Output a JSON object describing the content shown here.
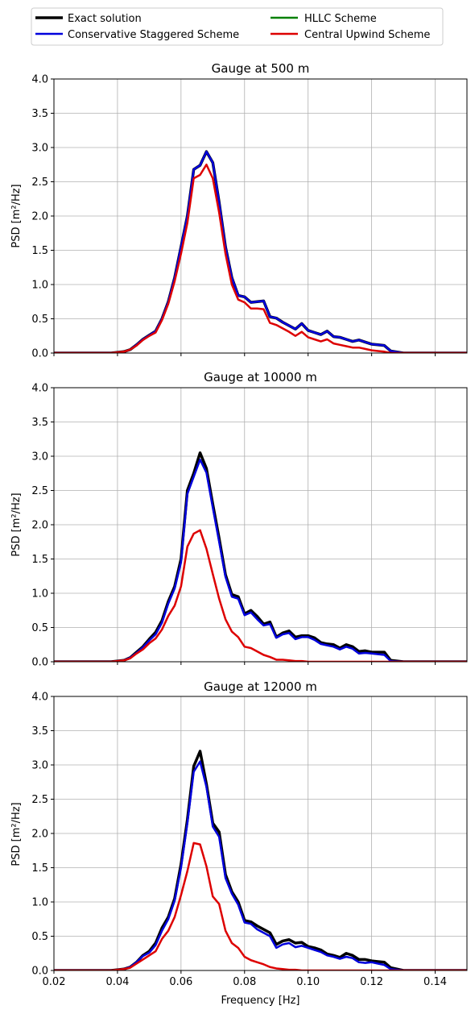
{
  "legend": {
    "placement": "top, two columns",
    "entries": [
      {
        "label": "Exact solution",
        "color": "#000000"
      },
      {
        "label": "HLLC Scheme",
        "color": "#008000"
      },
      {
        "label": "Conservative Staggered Scheme",
        "color": "#0000dd"
      },
      {
        "label": "Central Upwind Scheme",
        "color": "#dd0000"
      }
    ]
  },
  "xlabel": "Frequency [Hz]",
  "ylabel": "PSD [m²/Hz]",
  "chart_data": [
    {
      "type": "line",
      "title": "Gauge at 500 m",
      "ylabel": "PSD [m²/Hz]",
      "xlim": [
        0.02,
        0.15
      ],
      "ylim": [
        0,
        4.0
      ],
      "xticks": [
        0.02,
        0.04,
        0.06,
        0.08,
        0.1,
        0.12,
        0.14
      ],
      "yticks": [
        0.0,
        0.5,
        1.0,
        1.5,
        2.0,
        2.5,
        3.0,
        3.5,
        4.0
      ],
      "grid": true,
      "x": [
        0.02,
        0.03,
        0.038,
        0.04,
        0.042,
        0.044,
        0.046,
        0.048,
        0.05,
        0.052,
        0.054,
        0.056,
        0.058,
        0.06,
        0.062,
        0.064,
        0.066,
        0.068,
        0.07,
        0.072,
        0.074,
        0.076,
        0.078,
        0.08,
        0.082,
        0.084,
        0.086,
        0.088,
        0.09,
        0.092,
        0.094,
        0.096,
        0.098,
        0.1,
        0.102,
        0.104,
        0.106,
        0.108,
        0.11,
        0.112,
        0.114,
        0.116,
        0.118,
        0.12,
        0.122,
        0.124,
        0.126,
        0.13,
        0.15
      ],
      "series": [
        {
          "name": "Exact solution",
          "color": "#000000",
          "values": [
            0,
            0,
            0,
            0.01,
            0.02,
            0.05,
            0.12,
            0.2,
            0.26,
            0.32,
            0.5,
            0.75,
            1.1,
            1.55,
            2.0,
            2.68,
            2.74,
            2.94,
            2.78,
            2.2,
            1.55,
            1.1,
            0.84,
            0.82,
            0.74,
            0.75,
            0.76,
            0.53,
            0.51,
            0.45,
            0.4,
            0.35,
            0.43,
            0.33,
            0.3,
            0.27,
            0.32,
            0.24,
            0.23,
            0.2,
            0.17,
            0.19,
            0.16,
            0.13,
            0.12,
            0.11,
            0.03,
            0,
            0
          ]
        },
        {
          "name": "HLLC Scheme",
          "color": "#008000",
          "values": [
            0,
            0,
            0,
            0.01,
            0.02,
            0.05,
            0.12,
            0.2,
            0.26,
            0.32,
            0.5,
            0.75,
            1.1,
            1.55,
            2.0,
            2.68,
            2.74,
            2.94,
            2.78,
            2.2,
            1.55,
            1.1,
            0.84,
            0.82,
            0.74,
            0.75,
            0.76,
            0.53,
            0.51,
            0.45,
            0.4,
            0.35,
            0.43,
            0.33,
            0.3,
            0.27,
            0.32,
            0.24,
            0.23,
            0.2,
            0.17,
            0.19,
            0.16,
            0.13,
            0.12,
            0.11,
            0.03,
            0,
            0
          ]
        },
        {
          "name": "Conservative Staggered Scheme",
          "color": "#0000dd",
          "values": [
            0,
            0,
            0,
            0.01,
            0.02,
            0.05,
            0.12,
            0.2,
            0.26,
            0.32,
            0.5,
            0.75,
            1.1,
            1.55,
            2.0,
            2.68,
            2.74,
            2.94,
            2.78,
            2.2,
            1.55,
            1.1,
            0.84,
            0.82,
            0.74,
            0.75,
            0.76,
            0.53,
            0.51,
            0.45,
            0.4,
            0.35,
            0.43,
            0.33,
            0.3,
            0.27,
            0.32,
            0.24,
            0.23,
            0.2,
            0.17,
            0.19,
            0.16,
            0.13,
            0.12,
            0.11,
            0.03,
            0,
            0
          ]
        },
        {
          "name": "Central Upwind Scheme",
          "color": "#dd0000",
          "values": [
            0,
            0,
            0,
            0.01,
            0.02,
            0.05,
            0.11,
            0.19,
            0.25,
            0.3,
            0.48,
            0.72,
            1.05,
            1.45,
            1.9,
            2.55,
            2.6,
            2.75,
            2.55,
            2.05,
            1.45,
            1.0,
            0.78,
            0.74,
            0.65,
            0.65,
            0.64,
            0.44,
            0.41,
            0.36,
            0.31,
            0.25,
            0.31,
            0.23,
            0.2,
            0.17,
            0.2,
            0.14,
            0.12,
            0.1,
            0.08,
            0.08,
            0.06,
            0.04,
            0.03,
            0.02,
            0,
            0,
            0
          ]
        }
      ]
    },
    {
      "type": "line",
      "title": "Gauge at 10000 m",
      "ylabel": "PSD [m²/Hz]",
      "xlim": [
        0.02,
        0.15
      ],
      "ylim": [
        0,
        4.0
      ],
      "xticks": [
        0.02,
        0.04,
        0.06,
        0.08,
        0.1,
        0.12,
        0.14
      ],
      "yticks": [
        0.0,
        0.5,
        1.0,
        1.5,
        2.0,
        2.5,
        3.0,
        3.5,
        4.0
      ],
      "grid": true,
      "x": [
        0.02,
        0.03,
        0.038,
        0.04,
        0.042,
        0.044,
        0.046,
        0.048,
        0.05,
        0.052,
        0.054,
        0.056,
        0.058,
        0.06,
        0.062,
        0.064,
        0.066,
        0.068,
        0.07,
        0.072,
        0.074,
        0.076,
        0.078,
        0.08,
        0.082,
        0.084,
        0.086,
        0.088,
        0.09,
        0.092,
        0.094,
        0.096,
        0.098,
        0.1,
        0.102,
        0.104,
        0.106,
        0.108,
        0.11,
        0.112,
        0.114,
        0.116,
        0.118,
        0.12,
        0.122,
        0.124,
        0.126,
        0.13,
        0.15
      ],
      "series": [
        {
          "name": "Exact solution",
          "color": "#000000",
          "values": [
            0,
            0,
            0,
            0.01,
            0.02,
            0.06,
            0.14,
            0.22,
            0.33,
            0.43,
            0.6,
            0.88,
            1.1,
            1.5,
            2.5,
            2.75,
            3.05,
            2.82,
            2.3,
            1.8,
            1.27,
            0.98,
            0.95,
            0.7,
            0.75,
            0.66,
            0.55,
            0.58,
            0.36,
            0.42,
            0.45,
            0.36,
            0.38,
            0.38,
            0.35,
            0.28,
            0.26,
            0.25,
            0.2,
            0.25,
            0.22,
            0.15,
            0.16,
            0.14,
            0.14,
            0.14,
            0.02,
            0,
            0
          ]
        },
        {
          "name": "HLLC Scheme",
          "color": "#008000",
          "values": [
            0,
            0,
            0,
            0.01,
            0.02,
            0.06,
            0.13,
            0.21,
            0.31,
            0.4,
            0.57,
            0.85,
            1.07,
            1.45,
            2.45,
            2.7,
            2.95,
            2.76,
            2.25,
            1.75,
            1.24,
            0.95,
            0.92,
            0.68,
            0.72,
            0.62,
            0.53,
            0.55,
            0.35,
            0.4,
            0.42,
            0.33,
            0.36,
            0.36,
            0.32,
            0.26,
            0.24,
            0.22,
            0.18,
            0.22,
            0.19,
            0.12,
            0.13,
            0.12,
            0.11,
            0.1,
            0.01,
            0,
            0
          ]
        },
        {
          "name": "Conservative Staggered Scheme",
          "color": "#0000dd",
          "values": [
            0,
            0,
            0,
            0.01,
            0.02,
            0.06,
            0.13,
            0.21,
            0.31,
            0.4,
            0.57,
            0.85,
            1.07,
            1.45,
            2.45,
            2.7,
            2.95,
            2.76,
            2.25,
            1.75,
            1.24,
            0.95,
            0.92,
            0.68,
            0.72,
            0.62,
            0.53,
            0.55,
            0.35,
            0.4,
            0.42,
            0.33,
            0.36,
            0.36,
            0.32,
            0.26,
            0.24,
            0.22,
            0.18,
            0.22,
            0.19,
            0.12,
            0.13,
            0.12,
            0.11,
            0.1,
            0.01,
            0,
            0
          ]
        },
        {
          "name": "Central Upwind Scheme",
          "color": "#dd0000",
          "values": [
            0,
            0,
            0,
            0.01,
            0.02,
            0.05,
            0.12,
            0.18,
            0.27,
            0.34,
            0.47,
            0.67,
            0.82,
            1.1,
            1.68,
            1.87,
            1.92,
            1.65,
            1.28,
            0.92,
            0.62,
            0.44,
            0.36,
            0.22,
            0.2,
            0.15,
            0.1,
            0.07,
            0.03,
            0.03,
            0.02,
            0.01,
            0.01,
            0,
            0,
            0,
            0,
            0,
            0,
            0,
            0,
            0,
            0,
            0,
            0,
            0,
            0,
            0,
            0
          ]
        }
      ]
    },
    {
      "type": "line",
      "title": "Gauge at 12000 m",
      "xlabel": "Frequency [Hz]",
      "ylabel": "PSD [m²/Hz]",
      "xlim": [
        0.02,
        0.15
      ],
      "ylim": [
        0,
        4.0
      ],
      "xticks": [
        0.02,
        0.04,
        0.06,
        0.08,
        0.1,
        0.12,
        0.14
      ],
      "yticks": [
        0.0,
        0.5,
        1.0,
        1.5,
        2.0,
        2.5,
        3.0,
        3.5,
        4.0
      ],
      "grid": true,
      "x": [
        0.02,
        0.03,
        0.038,
        0.04,
        0.042,
        0.044,
        0.046,
        0.048,
        0.05,
        0.052,
        0.054,
        0.056,
        0.058,
        0.06,
        0.062,
        0.064,
        0.066,
        0.068,
        0.07,
        0.072,
        0.074,
        0.076,
        0.078,
        0.08,
        0.082,
        0.084,
        0.086,
        0.088,
        0.09,
        0.092,
        0.094,
        0.096,
        0.098,
        0.1,
        0.102,
        0.104,
        0.106,
        0.108,
        0.11,
        0.112,
        0.114,
        0.116,
        0.118,
        0.12,
        0.122,
        0.124,
        0.126,
        0.13,
        0.15
      ],
      "series": [
        {
          "name": "Exact solution",
          "color": "#000000",
          "values": [
            0,
            0,
            0,
            0.01,
            0.02,
            0.05,
            0.12,
            0.22,
            0.28,
            0.4,
            0.62,
            0.78,
            1.05,
            1.55,
            2.2,
            2.98,
            3.2,
            2.72,
            2.15,
            2.02,
            1.4,
            1.15,
            1.0,
            0.73,
            0.71,
            0.65,
            0.6,
            0.55,
            0.38,
            0.43,
            0.45,
            0.4,
            0.41,
            0.35,
            0.33,
            0.3,
            0.24,
            0.22,
            0.19,
            0.25,
            0.22,
            0.16,
            0.16,
            0.14,
            0.13,
            0.12,
            0.04,
            0,
            0
          ]
        },
        {
          "name": "HLLC Scheme",
          "color": "#008000",
          "values": [
            0,
            0,
            0,
            0.01,
            0.02,
            0.05,
            0.12,
            0.21,
            0.26,
            0.37,
            0.58,
            0.75,
            1.02,
            1.5,
            2.15,
            2.9,
            3.05,
            2.68,
            2.1,
            1.95,
            1.35,
            1.12,
            0.96,
            0.7,
            0.68,
            0.6,
            0.55,
            0.5,
            0.33,
            0.38,
            0.4,
            0.34,
            0.36,
            0.33,
            0.3,
            0.27,
            0.22,
            0.2,
            0.17,
            0.2,
            0.18,
            0.12,
            0.11,
            0.12,
            0.1,
            0.08,
            0.02,
            0,
            0
          ]
        },
        {
          "name": "Conservative Staggered Scheme",
          "color": "#0000dd",
          "values": [
            0,
            0,
            0,
            0.01,
            0.02,
            0.05,
            0.12,
            0.21,
            0.26,
            0.37,
            0.58,
            0.75,
            1.02,
            1.5,
            2.15,
            2.9,
            3.05,
            2.68,
            2.1,
            1.95,
            1.35,
            1.12,
            0.96,
            0.7,
            0.68,
            0.6,
            0.55,
            0.5,
            0.33,
            0.38,
            0.4,
            0.34,
            0.36,
            0.33,
            0.3,
            0.27,
            0.22,
            0.2,
            0.17,
            0.2,
            0.18,
            0.12,
            0.11,
            0.12,
            0.1,
            0.08,
            0.02,
            0,
            0
          ]
        },
        {
          "name": "Central Upwind Scheme",
          "color": "#dd0000",
          "values": [
            0,
            0,
            0,
            0.01,
            0.02,
            0.04,
            0.1,
            0.16,
            0.22,
            0.28,
            0.46,
            0.58,
            0.78,
            1.1,
            1.45,
            1.86,
            1.84,
            1.52,
            1.08,
            0.97,
            0.58,
            0.4,
            0.33,
            0.2,
            0.15,
            0.12,
            0.09,
            0.05,
            0.03,
            0.02,
            0.01,
            0.01,
            0,
            0,
            0,
            0,
            0,
            0,
            0,
            0,
            0,
            0,
            0,
            0,
            0,
            0,
            0,
            0,
            0
          ]
        }
      ]
    }
  ]
}
